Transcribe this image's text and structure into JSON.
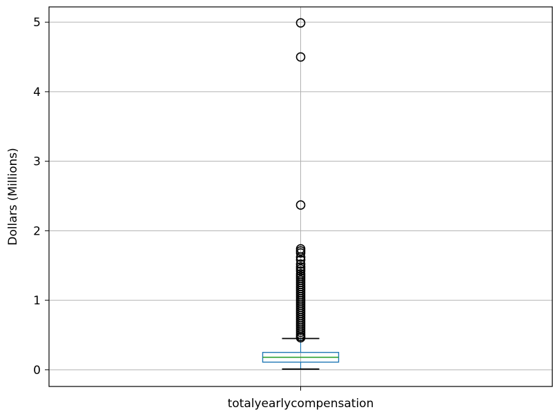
{
  "chart_data": {
    "type": "box",
    "title": "",
    "xlabel": "",
    "ylabel": "Dollars (Millions)",
    "categories": [
      "totalyearlycompensation"
    ],
    "ylim": [
      -0.24,
      5.22
    ],
    "yticks": [
      0,
      1,
      2,
      3,
      4,
      5
    ],
    "grid": true,
    "boxes": [
      {
        "name": "totalyearlycompensation",
        "whisker_low": 0.01,
        "q1": 0.11,
        "median": 0.18,
        "q3": 0.25,
        "whisker_high": 0.45,
        "outliers": [
          4.99,
          4.5,
          2.37,
          1.74,
          1.71,
          1.68,
          1.62,
          1.58,
          1.52,
          1.48,
          1.45,
          1.42,
          1.38,
          1.35,
          1.32,
          1.29,
          1.26,
          1.23,
          1.2,
          1.17,
          1.14,
          1.11,
          1.08,
          1.05,
          1.02,
          0.99,
          0.96,
          0.93,
          0.9,
          0.87,
          0.84,
          0.81,
          0.78,
          0.75,
          0.72,
          0.69,
          0.66,
          0.63,
          0.6,
          0.57,
          0.54,
          0.51,
          0.48,
          0.46
        ]
      }
    ],
    "colors": {
      "box": "#1f77b4",
      "median": "#2ca02c",
      "whisker": "#000000",
      "outlier": "#000000",
      "grid": "#b0b0b0"
    }
  }
}
